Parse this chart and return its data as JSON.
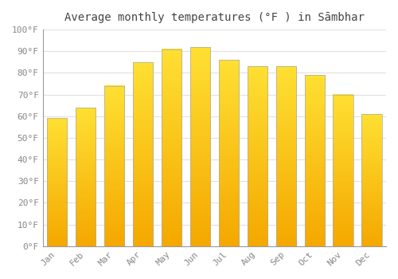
{
  "title": "Average monthly temperatures (°F ) in Sāmbhar",
  "months": [
    "Jan",
    "Feb",
    "Mar",
    "Apr",
    "May",
    "Jun",
    "Jul",
    "Aug",
    "Sep",
    "Oct",
    "Nov",
    "Dec"
  ],
  "values": [
    59,
    64,
    74,
    85,
    91,
    92,
    86,
    83,
    83,
    79,
    70,
    61
  ],
  "bar_color_bottom": "#F5A800",
  "bar_color_top": "#FFE033",
  "bar_edge_color": "#AAAAAA",
  "ylim": [
    0,
    100
  ],
  "yticks": [
    0,
    10,
    20,
    30,
    40,
    50,
    60,
    70,
    80,
    90,
    100
  ],
  "ytick_labels": [
    "0°F",
    "10°F",
    "20°F",
    "30°F",
    "40°F",
    "50°F",
    "60°F",
    "70°F",
    "80°F",
    "90°F",
    "100°F"
  ],
  "background_color": "#ffffff",
  "grid_color": "#e0e0e0",
  "tick_label_color": "#888888",
  "title_color": "#444444",
  "title_fontsize": 10,
  "tick_fontsize": 8
}
